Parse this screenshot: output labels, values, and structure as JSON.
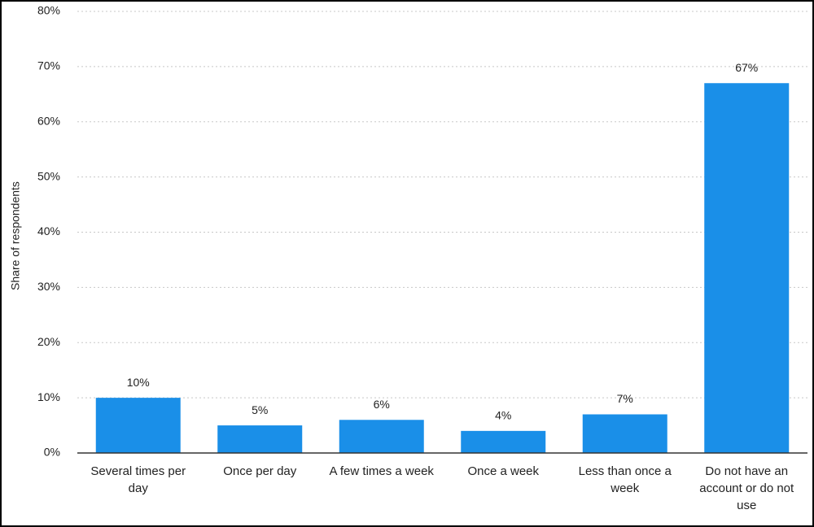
{
  "chart_data": {
    "type": "bar",
    "y_label": "Share of respondents",
    "categories": [
      "Several times per day",
      "Once per day",
      "A few times a week",
      "Once a week",
      "Less than once a week",
      "Do not have an account or do not use"
    ],
    "values": [
      10,
      5,
      6,
      4,
      7,
      67
    ],
    "value_labels": [
      "10%",
      "5%",
      "6%",
      "4%",
      "7%",
      "67%"
    ],
    "color": "#1a8fe8",
    "ylim": [
      0,
      80
    ],
    "yticks": [
      {
        "value": 0,
        "label": "0%"
      },
      {
        "value": 10,
        "label": "10%"
      },
      {
        "value": 20,
        "label": "20%"
      },
      {
        "value": 30,
        "label": "30%"
      },
      {
        "value": 40,
        "label": "40%"
      },
      {
        "value": 50,
        "label": "50%"
      },
      {
        "value": 60,
        "label": "60%"
      },
      {
        "value": 70,
        "label": "70%"
      },
      {
        "value": 80,
        "label": "80%"
      }
    ],
    "grid": true
  }
}
